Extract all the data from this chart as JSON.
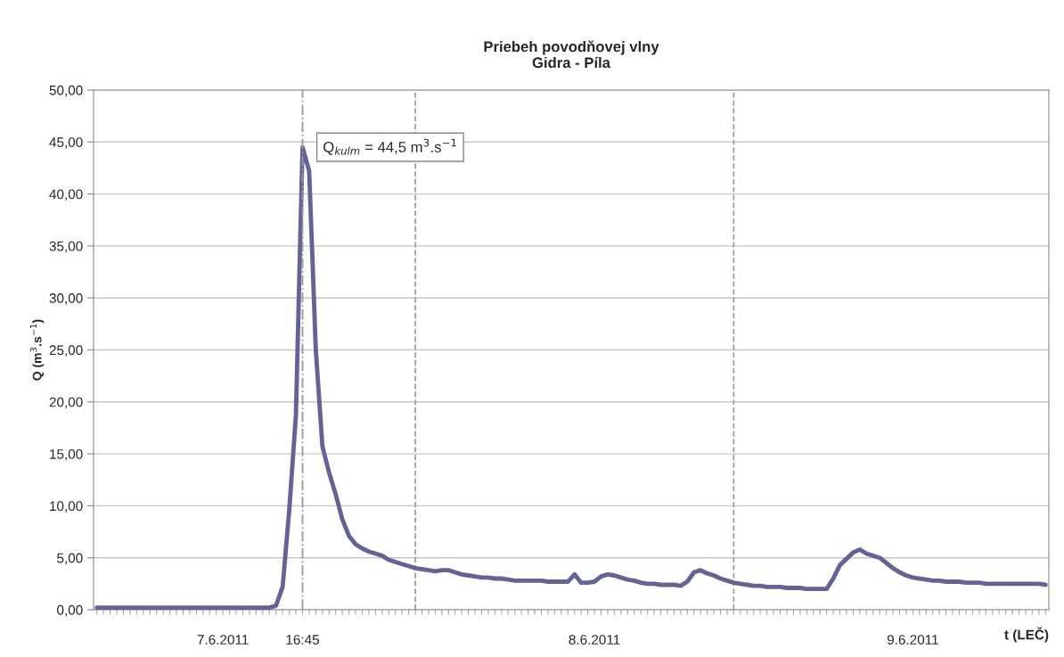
{
  "chart_data": {
    "type": "line",
    "title": "Priebeh povodňovej vlny\nGidra - Píla",
    "xlabel": "t (LEČ)",
    "ylabel": "Q (m$^{3}$.s$^{−1}$)",
    "categories": [
      null,
      null,
      null,
      null,
      null,
      null,
      null,
      null,
      null,
      null,
      null,
      null,
      null,
      null,
      null,
      null,
      null,
      null,
      null,
      "7.6.2011",
      null,
      null,
      null,
      null,
      null,
      null,
      null,
      null,
      null,
      null,
      null,
      "16:45",
      null,
      null,
      null,
      null,
      null,
      null,
      null,
      null,
      null,
      null,
      null,
      null,
      null,
      null,
      null,
      null,
      null,
      null,
      null,
      null,
      null,
      null,
      null,
      null,
      null,
      null,
      null,
      null,
      null,
      null,
      null,
      null,
      null,
      null,
      null,
      null,
      null,
      null,
      null,
      null,
      null,
      null,
      null,
      "8.6.2011",
      null,
      null,
      null,
      null,
      null,
      null,
      null,
      null,
      null,
      null,
      null,
      null,
      null,
      null,
      null,
      null,
      null,
      null,
      null,
      null,
      null,
      null,
      null,
      null,
      null,
      null,
      null,
      null,
      null,
      null,
      null,
      null,
      null,
      null,
      null,
      null,
      null,
      null,
      null,
      null,
      null,
      null,
      null,
      null,
      null,
      null,
      null,
      "9.6.2011",
      null,
      null,
      null,
      null,
      null,
      null,
      null,
      null,
      null,
      null,
      null,
      null,
      null,
      null,
      null,
      null,
      null,
      null,
      null,
      null
    ],
    "series": [
      {
        "color": "#636395",
        "values": [
          0.2,
          0.2,
          0.2,
          0.2,
          0.2,
          0.2,
          0.2,
          0.2,
          0.2,
          0.2,
          0.2,
          0.2,
          0.2,
          0.2,
          0.2,
          0.2,
          0.2,
          0.2,
          0.2,
          0.2,
          0.2,
          0.2,
          0.2,
          0.2,
          0.2,
          0.2,
          0.2,
          0.4,
          2.2,
          9.6,
          18.7,
          44.5,
          42.2,
          25,
          15.7,
          13.2,
          11.1,
          8.7,
          7.1,
          6.3,
          5.9,
          5.6,
          5.4,
          5.2,
          4.8,
          4.6,
          4.4,
          4.2,
          4.0,
          3.9,
          3.8,
          3.7,
          3.8,
          3.8,
          3.6,
          3.4,
          3.3,
          3.2,
          3.1,
          3.1,
          3.0,
          3.0,
          2.9,
          2.8,
          2.8,
          2.8,
          2.8,
          2.8,
          2.7,
          2.7,
          2.7,
          2.7,
          3.4,
          2.6,
          2.6,
          2.7,
          3.2,
          3.4,
          3.3,
          3.1,
          2.9,
          2.8,
          2.6,
          2.5,
          2.5,
          2.4,
          2.4,
          2.4,
          2.3,
          2.7,
          3.6,
          3.8,
          3.5,
          3.3,
          3.0,
          2.8,
          2.6,
          2.5,
          2.4,
          2.3,
          2.3,
          2.2,
          2.2,
          2.2,
          2.1,
          2.1,
          2.1,
          2.0,
          2.0,
          2.0,
          2.0,
          3.0,
          4.3,
          4.9,
          5.5,
          5.8,
          5.4,
          5.2,
          5.0,
          4.5,
          4.0,
          3.6,
          3.3,
          3.1,
          3.0,
          2.9,
          2.8,
          2.8,
          2.7,
          2.7,
          2.7,
          2.6,
          2.6,
          2.6,
          2.5,
          2.5,
          2.5,
          2.5,
          2.5,
          2.5,
          2.5,
          2.5,
          2.5,
          2.4
        ]
      }
    ],
    "ylim": [
      0,
      50
    ],
    "yticks": [
      {
        "value": 0,
        "label": "0,00"
      },
      {
        "value": 5,
        "label": "5,00"
      },
      {
        "value": 10,
        "label": "10,00"
      },
      {
        "value": 15,
        "label": "15,00"
      },
      {
        "value": 20,
        "label": "20,00"
      },
      {
        "value": 25,
        "label": "25,00"
      },
      {
        "value": 30,
        "label": "30,00"
      },
      {
        "value": 35,
        "label": "35,00"
      },
      {
        "value": 40,
        "label": "40,00"
      },
      {
        "value": 45,
        "label": "45,00"
      },
      {
        "value": 50,
        "label": "50,00"
      }
    ],
    "ref_lines": [
      {
        "axis": "x",
        "value": "16:45",
        "line_style": "dashdot",
        "color": "#999999"
      }
    ],
    "annotations": [
      "Q$_{kulm}$ = 44,5 m$^{3}$.s$^{−1}$"
    ],
    "grid": "y",
    "line_style": "solid",
    "marker": "none"
  }
}
